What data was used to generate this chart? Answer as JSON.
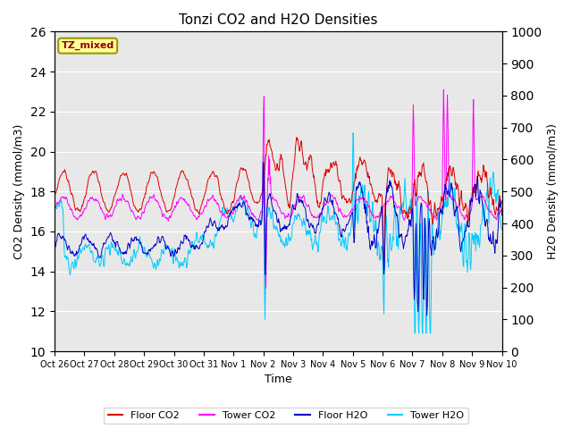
{
  "title": "Tonzi CO2 and H2O Densities",
  "xlabel": "Time",
  "ylabel_left": "CO2 Density (mmol/m3)",
  "ylabel_right": "H2O Density (mmol/m3)",
  "annotation": "TZ_mixed",
  "annotation_color": "#990000",
  "annotation_bg": "#ffff99",
  "annotation_border": "#999900",
  "ylim_left": [
    10,
    26
  ],
  "ylim_right": [
    0,
    1000
  ],
  "yticks_left": [
    10,
    12,
    14,
    16,
    18,
    20,
    22,
    24,
    26
  ],
  "yticks_right": [
    0,
    100,
    200,
    300,
    400,
    500,
    600,
    700,
    800,
    900,
    1000
  ],
  "xtick_labels": [
    "Oct 26",
    "Oct 27",
    "Oct 28",
    "Oct 29",
    "Oct 30",
    "Oct 31",
    "Nov 1",
    "Nov 2",
    "Nov 3",
    "Nov 4",
    "Nov 5",
    "Nov 6",
    "Nov 7",
    "Nov 8",
    "Nov 9",
    "Nov 10"
  ],
  "bg_color": "#e8e8e8",
  "colors": {
    "floor_co2": "#dd0000",
    "tower_co2": "#ff00ff",
    "floor_h2o": "#0000cc",
    "tower_h2o": "#00ccff"
  },
  "legend_labels": [
    "Floor CO2",
    "Tower CO2",
    "Floor H2O",
    "Tower H2O"
  ],
  "lw": 0.7,
  "figsize": [
    6.4,
    4.8
  ],
  "dpi": 100
}
